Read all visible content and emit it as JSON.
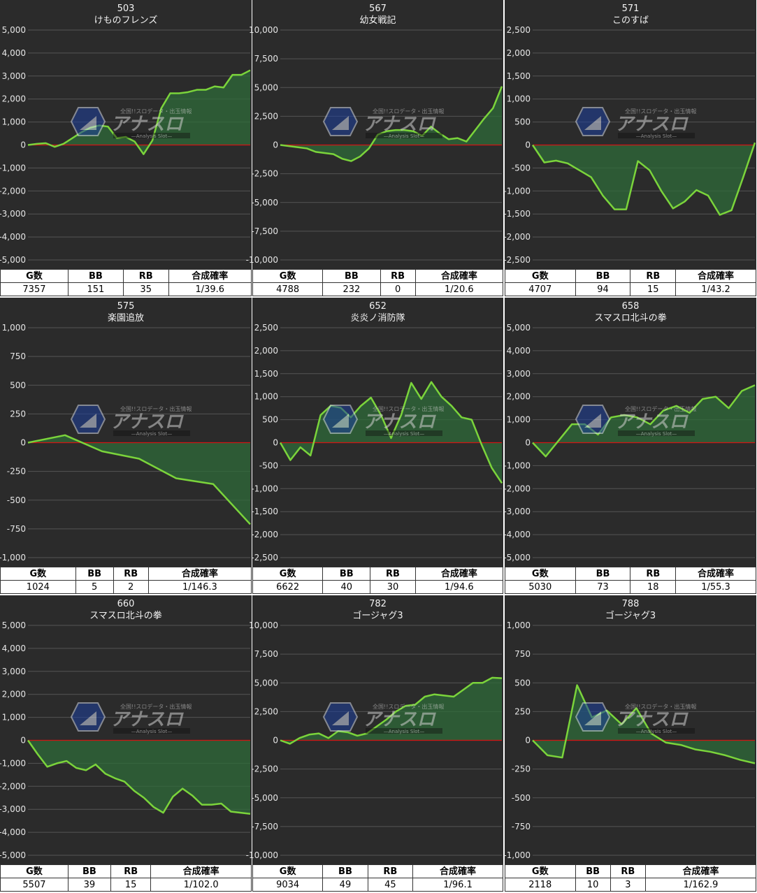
{
  "stat_headers": [
    "G数",
    "BB",
    "RB",
    "合成確率"
  ],
  "colors": {
    "line": "#7bd43b",
    "fill": "#2f6b3a",
    "zero": "#d21414",
    "panel": "#2b2b2b",
    "grid": "#555555"
  },
  "watermark": {
    "logo_text": "アナスロ",
    "tagline": "全国!!スロデータ・出玉情報",
    "subtitle": "Analysis Slot"
  },
  "panels": [
    {
      "machine_no": "503",
      "title": "けものフレンズ",
      "stats": [
        "7357",
        "151",
        "35",
        "1/39.6"
      ]
    },
    {
      "machine_no": "567",
      "title": "幼女戦記",
      "stats": [
        "4788",
        "232",
        "0",
        "1/20.6"
      ]
    },
    {
      "machine_no": "571",
      "title": "このすば",
      "stats": [
        "4707",
        "94",
        "15",
        "1/43.2"
      ]
    },
    {
      "machine_no": "575",
      "title": "楽園追放",
      "stats": [
        "1024",
        "5",
        "2",
        "1/146.3"
      ]
    },
    {
      "machine_no": "652",
      "title": "炎炎ノ消防隊",
      "stats": [
        "6622",
        "40",
        "30",
        "1/94.6"
      ]
    },
    {
      "machine_no": "658",
      "title": "スマスロ北斗の拳",
      "stats": [
        "5030",
        "73",
        "18",
        "1/55.3"
      ]
    },
    {
      "machine_no": "660",
      "title": "スマスロ北斗の拳",
      "stats": [
        "5507",
        "39",
        "15",
        "1/102.0"
      ]
    },
    {
      "machine_no": "782",
      "title": "ゴージャグ3",
      "stats": [
        "9034",
        "49",
        "45",
        "1/96.1"
      ]
    },
    {
      "machine_no": "788",
      "title": "ゴージャグ3",
      "stats": [
        "2118",
        "10",
        "3",
        "1/162.9"
      ]
    }
  ],
  "chart_data": [
    {
      "type": "area",
      "title": "けものフレンズ",
      "xlabel": "",
      "ylabel": "",
      "ylim": [
        -5000,
        5000
      ],
      "yticks": [
        "5,000",
        "4,000",
        "3,000",
        "2,000",
        "1,000",
        "0",
        "-1,000",
        "-2,000",
        "-3,000",
        "-4,000",
        "-5,000"
      ],
      "y": [
        0,
        50,
        80,
        -80,
        50,
        300,
        550,
        750,
        850,
        800,
        300,
        350,
        150,
        -400,
        200,
        1600,
        2250,
        2250,
        2300,
        2400,
        2400,
        2550,
        2500,
        3050,
        3050,
        3250
      ]
    },
    {
      "type": "area",
      "title": "幼女戦記",
      "xlabel": "",
      "ylabel": "",
      "ylim": [
        -10000,
        10000
      ],
      "yticks": [
        "10,000",
        "7,500",
        "5,000",
        "2,500",
        "0",
        "-2,500",
        "-5,000",
        "-7,500",
        "-10,000"
      ],
      "y": [
        0,
        -100,
        -200,
        -300,
        -600,
        -700,
        -800,
        -1200,
        -1400,
        -1000,
        -300,
        900,
        1200,
        1300,
        1300,
        1200,
        800,
        1600,
        1000,
        500,
        600,
        300,
        1300,
        2300,
        3200,
        5100
      ]
    },
    {
      "type": "area",
      "title": "このすば",
      "xlabel": "",
      "ylabel": "",
      "ylim": [
        -2500,
        2500
      ],
      "yticks": [
        "2,500",
        "2,000",
        "1,500",
        "1,000",
        "500",
        "0",
        "-500",
        "-1,000",
        "-1,500",
        "-2,000",
        "-2,500"
      ],
      "y": [
        0,
        -380,
        -340,
        -400,
        -550,
        -700,
        -1100,
        -1400,
        -1400,
        -350,
        -550,
        -1000,
        -1380,
        -1230,
        -980,
        -1100,
        -1520,
        -1420,
        -700,
        50
      ]
    },
    {
      "type": "area",
      "title": "楽園追放",
      "xlabel": "",
      "ylabel": "",
      "ylim": [
        -1000,
        1000
      ],
      "yticks": [
        "1,000",
        "750",
        "500",
        "250",
        "0",
        "-250",
        "-500",
        "-750",
        "-1,000"
      ],
      "y": [
        0,
        65,
        -75,
        -140,
        -310,
        -360,
        -710
      ]
    },
    {
      "type": "area",
      "title": "炎炎ノ消防隊",
      "xlabel": "",
      "ylabel": "",
      "ylim": [
        -2500,
        2500
      ],
      "yticks": [
        "2,500",
        "2,000",
        "1,500",
        "1,000",
        "500",
        "0",
        "-500",
        "-1,000",
        "-1,500",
        "-2,000",
        "-2,500"
      ],
      "y": [
        0,
        -380,
        -100,
        -280,
        600,
        800,
        760,
        550,
        800,
        980,
        600,
        100,
        600,
        1300,
        950,
        1320,
        1000,
        800,
        550,
        500,
        -50,
        -550,
        -880
      ]
    },
    {
      "type": "area",
      "title": "スマスロ北斗の拳",
      "xlabel": "",
      "ylabel": "",
      "ylim": [
        -5000,
        5000
      ],
      "yticks": [
        "5,000",
        "4,000",
        "3,000",
        "2,000",
        "1,000",
        "0",
        "-1,000",
        "-2,000",
        "-3,000",
        "-4,000",
        "-5,000"
      ],
      "y": [
        0,
        -600,
        100,
        800,
        800,
        350,
        1100,
        1200,
        1100,
        800,
        1400,
        1600,
        1300,
        1900,
        2000,
        1500,
        2250,
        2500
      ]
    },
    {
      "type": "area",
      "title": "スマスロ北斗の拳",
      "xlabel": "",
      "ylabel": "",
      "ylim": [
        -5000,
        5000
      ],
      "yticks": [
        "5,000",
        "4,000",
        "3,000",
        "2,000",
        "1,000",
        "0",
        "-1,000",
        "-2,000",
        "-3,000",
        "-4,000",
        "-5,000"
      ],
      "y": [
        0,
        -600,
        -1150,
        -1000,
        -900,
        -1200,
        -1300,
        -1050,
        -1450,
        -1650,
        -1800,
        -2200,
        -2500,
        -2900,
        -3150,
        -2450,
        -2100,
        -2400,
        -2800,
        -2800,
        -2750,
        -3100,
        -3150,
        -3200
      ]
    },
    {
      "type": "area",
      "title": "ゴージャグ3",
      "xlabel": "",
      "ylabel": "",
      "ylim": [
        -10000,
        10000
      ],
      "yticks": [
        "10,000",
        "7,500",
        "5,000",
        "2,500",
        "0",
        "-2,500",
        "-5,000",
        "-7,500",
        "-10,000"
      ],
      "y": [
        0,
        -300,
        200,
        500,
        600,
        200,
        800,
        700,
        400,
        600,
        1200,
        1800,
        2500,
        3000,
        3100,
        3800,
        4000,
        3900,
        3800,
        4400,
        5000,
        5000,
        5450,
        5400
      ]
    },
    {
      "type": "area",
      "title": "ゴージャグ3",
      "xlabel": "",
      "ylabel": "",
      "ylim": [
        -1000,
        1000
      ],
      "yticks": [
        "1,000",
        "750",
        "500",
        "250",
        "0",
        "-250",
        "-500",
        "-750",
        "-1,000"
      ],
      "y": [
        0,
        -130,
        -150,
        480,
        200,
        260,
        140,
        280,
        60,
        -20,
        -40,
        -80,
        -100,
        -130,
        -170,
        -200
      ]
    }
  ]
}
